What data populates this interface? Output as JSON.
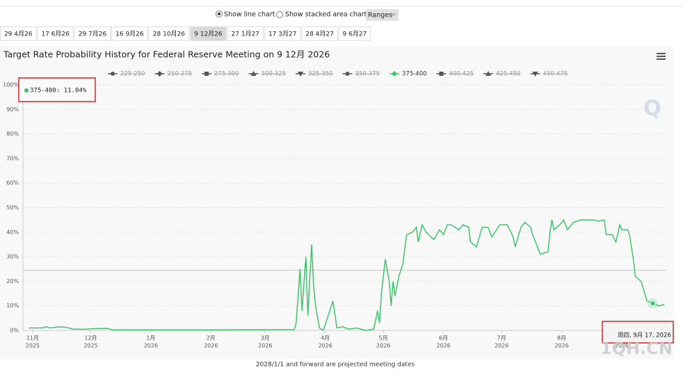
{
  "controls": {
    "line_chart": "Show line chart",
    "stacked": "Show stacked area chart",
    "ranges": "Ranges"
  },
  "tabs": {
    "items": [
      "29 4月26",
      "17 6月26",
      "29 7月26",
      "16 9月26",
      "28 10月26",
      "9 12月26",
      "27 1月27",
      "17 3月27",
      "28 4月27",
      "9 6月27"
    ],
    "active": "9 12月26"
  },
  "chart_data": {
    "type": "line",
    "title": "Target Rate Probability History for Federal Reserve Meeting on 9 12月 2026",
    "logo": "Q",
    "ylim": [
      0,
      100
    ],
    "yticks": [
      {
        "value": 0,
        "label": "0%"
      },
      {
        "value": 10,
        "label": "10%"
      },
      {
        "value": 20,
        "label": "20%"
      },
      {
        "value": 30,
        "label": "30%"
      },
      {
        "value": 40,
        "label": "40%"
      },
      {
        "value": 50,
        "label": "50%"
      },
      {
        "value": 60,
        "label": "60%"
      },
      {
        "value": 70,
        "label": "70%"
      },
      {
        "value": 80,
        "label": "80%"
      },
      {
        "value": 90,
        "label": "90%"
      },
      {
        "value": 100,
        "label": "100%"
      }
    ],
    "xlim": [
      "2025-10-27",
      "2026-09-24"
    ],
    "xticks": [
      {
        "value": "2025-11-01",
        "label": [
          "11月",
          "2025"
        ]
      },
      {
        "value": "2025-12-01",
        "label": [
          "12月",
          "2025"
        ]
      },
      {
        "value": "2026-01-01",
        "label": [
          "1月",
          "2026"
        ]
      },
      {
        "value": "2026-02-01",
        "label": [
          "2月",
          "2026"
        ]
      },
      {
        "value": "2026-03-01",
        "label": [
          "3月",
          "2026"
        ]
      },
      {
        "value": "2026-04-01",
        "label": [
          "4月",
          "2026"
        ]
      },
      {
        "value": "2026-05-01",
        "label": [
          "5月",
          "2026"
        ]
      },
      {
        "value": "2026-06-01",
        "label": [
          "6月",
          "2026"
        ]
      },
      {
        "value": "2026-07-01",
        "label": [
          "7月",
          "2026"
        ]
      },
      {
        "value": "2026-08-01",
        "label": [
          "8月",
          "2026"
        ]
      },
      {
        "value": "2026-09-01",
        "label": [
          "9月",
          "2026"
        ]
      }
    ],
    "grid": true,
    "reference_line": 24.5,
    "x": [
      "2025-10-30",
      "2025-11-06",
      "2025-11-08",
      "2025-11-10",
      "2025-11-15",
      "2025-11-18",
      "2025-11-22",
      "2025-11-29",
      "2025-12-04",
      "2025-12-10",
      "2025-12-12",
      "2026-01-30",
      "2026-03-16",
      "2026-03-17",
      "2026-03-19",
      "2026-03-20",
      "2026-03-22",
      "2026-03-23",
      "2026-03-25",
      "2026-03-26",
      "2026-03-27",
      "2026-03-29",
      "2026-03-31",
      "2026-04-05",
      "2026-04-07",
      "2026-04-10",
      "2026-04-13",
      "2026-04-17",
      "2026-04-22",
      "2026-04-26",
      "2026-04-28",
      "2026-04-29",
      "2026-04-30",
      "2026-05-02",
      "2026-05-04",
      "2026-05-05",
      "2026-05-06",
      "2026-05-07",
      "2026-05-09",
      "2026-05-11",
      "2026-05-13",
      "2026-05-16",
      "2026-05-18",
      "2026-05-19",
      "2026-05-21",
      "2026-05-23",
      "2026-05-27",
      "2026-05-30",
      "2026-06-01",
      "2026-06-03",
      "2026-06-05",
      "2026-06-09",
      "2026-06-11",
      "2026-06-14",
      "2026-06-15",
      "2026-06-18",
      "2026-06-21",
      "2026-06-24",
      "2026-06-26",
      "2026-06-30",
      "2026-07-04",
      "2026-07-07",
      "2026-07-08",
      "2026-07-11",
      "2026-07-13",
      "2026-07-16",
      "2026-07-17",
      "2026-07-19",
      "2026-07-21",
      "2026-07-25",
      "2026-07-26",
      "2026-07-27",
      "2026-07-28",
      "2026-07-31",
      "2026-08-02",
      "2026-08-04",
      "2026-08-07",
      "2026-08-11",
      "2026-08-17",
      "2026-08-20",
      "2026-08-23",
      "2026-08-24",
      "2026-08-27",
      "2026-08-29",
      "2026-08-31",
      "2026-09-01",
      "2026-09-04",
      "2026-09-05",
      "2026-09-07",
      "2026-09-08",
      "2026-09-11",
      "2026-09-14",
      "2026-09-17",
      "2026-09-20",
      "2026-09-23"
    ],
    "series": [
      {
        "name": "225-250",
        "marker": "circle",
        "visible": false
      },
      {
        "name": "250-275",
        "marker": "diamond",
        "visible": false
      },
      {
        "name": "275-300",
        "marker": "square",
        "visible": false
      },
      {
        "name": "300-325",
        "marker": "triangle",
        "visible": false
      },
      {
        "name": "325-350",
        "marker": "triangle-down",
        "visible": false
      },
      {
        "name": "350-375",
        "marker": "circle",
        "visible": false
      },
      {
        "name": "375-400",
        "marker": "diamond",
        "visible": true,
        "color": "#3dc46b",
        "values": [
          1,
          1,
          1.5,
          1,
          1.5,
          1.3,
          0.5,
          0.5,
          0.8,
          0.8,
          0.2,
          0.2,
          0.3,
          3,
          25,
          8,
          30,
          6,
          35,
          18,
          10,
          1,
          0,
          12,
          1,
          1.5,
          0.5,
          1,
          0,
          0.5,
          8,
          3,
          15,
          29,
          20,
          10,
          20,
          14,
          22,
          27,
          39,
          40,
          42,
          36,
          43,
          40,
          37,
          41,
          39,
          43,
          43,
          41,
          43,
          42,
          36,
          34,
          42,
          42,
          38,
          43,
          43,
          38,
          34,
          42,
          44,
          42,
          39,
          35,
          31,
          32,
          40,
          45,
          41,
          43,
          45,
          41,
          44,
          45,
          45,
          44.5,
          45,
          39,
          39,
          36,
          43,
          41,
          41,
          39,
          29,
          22,
          20,
          12,
          11.04,
          10,
          10.5
        ]
      },
      {
        "name": "400-425",
        "marker": "square",
        "visible": false
      },
      {
        "name": "425-450",
        "marker": "triangle",
        "visible": false
      },
      {
        "name": "450-475",
        "marker": "triangle-down",
        "visible": false
      }
    ],
    "highlight": {
      "x": "2026-09-17",
      "label": "375-400: 11.04%",
      "x_label": "周四, 9月 17, 2026"
    }
  },
  "footer_note": "2028/1/1 and forward are projected meeting dates",
  "watermark": "1QH.CN"
}
